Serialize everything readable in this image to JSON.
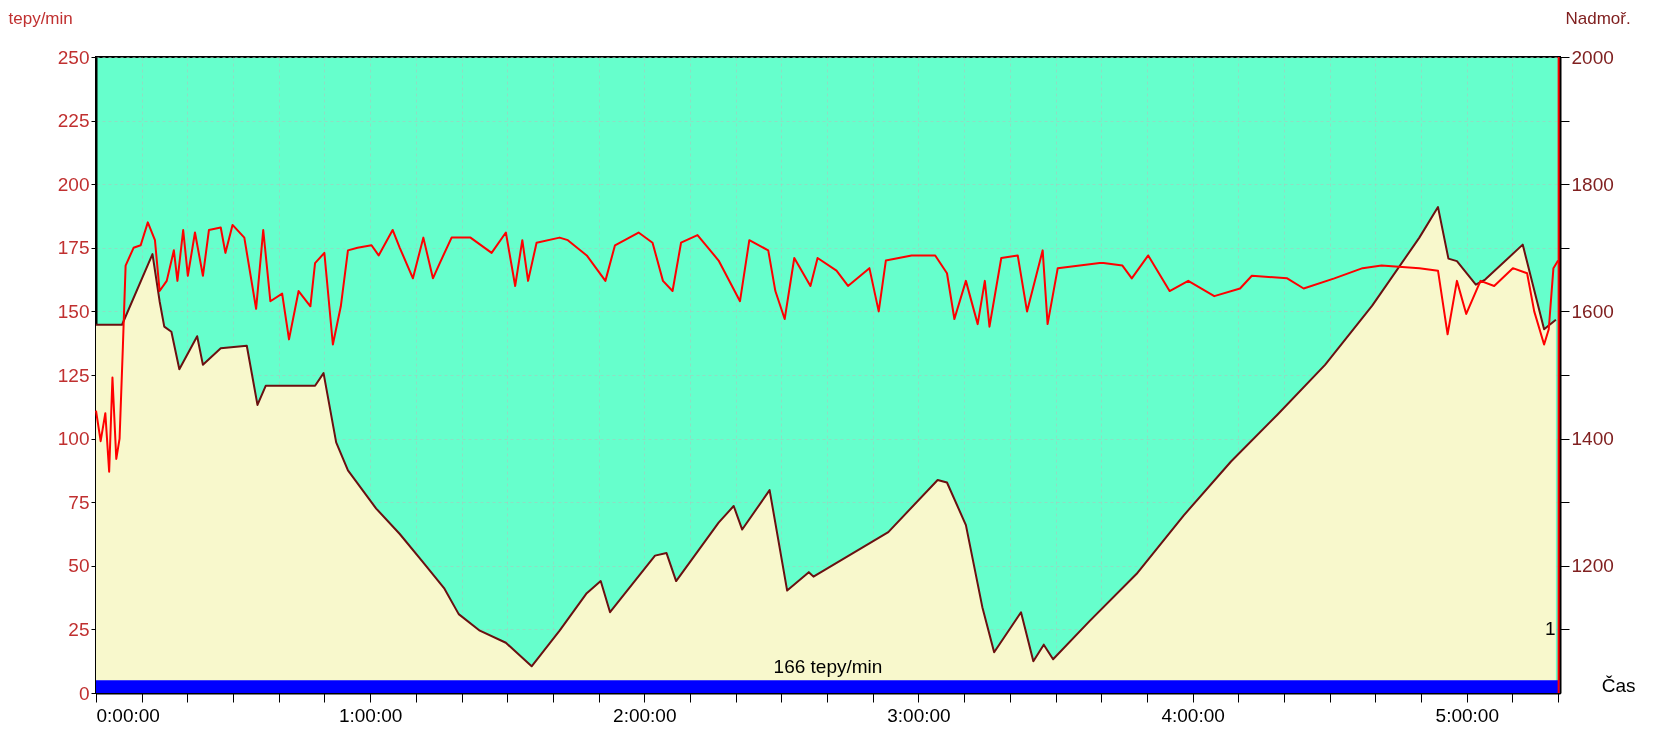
{
  "chart_data": {
    "type": "line",
    "xlabel": "Čas",
    "ylabel": "tepy/min",
    "y2label": "Nadmoř.",
    "xlim": [
      0,
      5.34
    ],
    "xticks": [
      {
        "value": 0,
        "label": "0:00:00"
      },
      {
        "value": 0.1667,
        "label": null
      },
      {
        "value": 0.3333,
        "label": null
      },
      {
        "value": 0.5,
        "label": null
      },
      {
        "value": 0.6667,
        "label": null
      },
      {
        "value": 0.8333,
        "label": null
      },
      {
        "value": 1,
        "label": "1:00:00"
      },
      {
        "value": 1.1667,
        "label": null
      },
      {
        "value": 1.3333,
        "label": null
      },
      {
        "value": 1.5,
        "label": null
      },
      {
        "value": 1.6667,
        "label": null
      },
      {
        "value": 1.8333,
        "label": null
      },
      {
        "value": 2,
        "label": "2:00:00"
      },
      {
        "value": 2.1667,
        "label": null
      },
      {
        "value": 2.3333,
        "label": null
      },
      {
        "value": 2.5,
        "label": null
      },
      {
        "value": 2.6667,
        "label": null
      },
      {
        "value": 2.8333,
        "label": null
      },
      {
        "value": 3,
        "label": "3:00:00"
      },
      {
        "value": 3.1667,
        "label": null
      },
      {
        "value": 3.3333,
        "label": null
      },
      {
        "value": 3.5,
        "label": null
      },
      {
        "value": 3.6667,
        "label": null
      },
      {
        "value": 3.8333,
        "label": null
      },
      {
        "value": 4,
        "label": "4:00:00"
      },
      {
        "value": 4.1667,
        "label": null
      },
      {
        "value": 4.3333,
        "label": null
      },
      {
        "value": 4.5,
        "label": null
      },
      {
        "value": 4.6667,
        "label": null
      },
      {
        "value": 4.8333,
        "label": null
      },
      {
        "value": 5,
        "label": "5:00:00"
      },
      {
        "value": 5.1667,
        "label": null
      },
      {
        "value": 5.3333,
        "label": null
      }
    ],
    "ylim": [
      0,
      250
    ],
    "yticks": [
      0,
      25,
      50,
      75,
      100,
      125,
      150,
      175,
      200,
      225,
      250
    ],
    "y2lim": [
      1000,
      2000
    ],
    "y2ticks": [
      {
        "value": 1100,
        "label": null
      },
      1200,
      {
        "value": 1300,
        "label": null
      },
      1400,
      {
        "value": 1500,
        "label": null
      },
      1600,
      {
        "value": 1700,
        "label": null
      },
      1800,
      {
        "value": 1900,
        "label": null
      },
      2000
    ],
    "grid": true,
    "bands": [
      {
        "axis": "y",
        "from": 0,
        "to": 5,
        "label": "166 tepy/min",
        "color": "#0000ff"
      }
    ],
    "ref_lines": [
      {
        "axis": "x",
        "value": 5.335,
        "color": "#ff0000"
      }
    ],
    "annotations": [
      {
        "text": "1",
        "x": 5.335,
        "y": 25
      }
    ],
    "series": [
      {
        "type": "area",
        "axis": "y2",
        "color": "#f8f8cc",
        "x": [
          0,
          0.095,
          0.206,
          0.232,
          0.249,
          0.275,
          0.304,
          0.369,
          0.39,
          0.455,
          0.55,
          0.589,
          0.619,
          0.799,
          0.83,
          0.876,
          0.919,
          1.022,
          1.108,
          1.194,
          1.271,
          1.323,
          1.4,
          1.495,
          1.589,
          1.691,
          1.79,
          1.841,
          1.875,
          2.039,
          2.081,
          2.116,
          2.271,
          2.326,
          2.357,
          2.457,
          2.521,
          2.6,
          2.617,
          2.89,
          3.07,
          3.104,
          3.173,
          3.233,
          3.276,
          3.374,
          3.419,
          3.457,
          3.491,
          3.624,
          3.795,
          3.967,
          4.14,
          4.31,
          4.483,
          4.655,
          4.827,
          4.895,
          4.933,
          4.964,
          5.033,
          5.067,
          5.204,
          5.282,
          5.325
        ],
        "values": [
          1579,
          1579,
          1690,
          1616,
          1576,
          1568,
          1509,
          1561,
          1516,
          1542,
          1546,
          1453,
          1483,
          1483,
          1503,
          1394,
          1350,
          1290,
          1250,
          1205,
          1164,
          1124,
          1098,
          1079,
          1042,
          1098,
          1157,
          1176,
          1127,
          1216,
          1220,
          1176,
          1268,
          1294,
          1257,
          1319,
          1161,
          1190,
          1183,
          1253,
          1335,
          1331,
          1264,
          1135,
          1064,
          1127,
          1050,
          1076,
          1053,
          1113,
          1187,
          1279,
          1364,
          1438,
          1516,
          1609,
          1716,
          1764,
          1683,
          1679,
          1642,
          1650,
          1705,
          1572,
          1587
        ]
      },
      {
        "axis": "y",
        "color": "#ff0000",
        "x": [
          0,
          0.017,
          0.034,
          0.048,
          0.06,
          0.074,
          0.086,
          0.098,
          0.108,
          0.137,
          0.163,
          0.189,
          0.215,
          0.232,
          0.258,
          0.284,
          0.297,
          0.318,
          0.335,
          0.361,
          0.39,
          0.412,
          0.455,
          0.472,
          0.498,
          0.541,
          0.584,
          0.61,
          0.636,
          0.679,
          0.704,
          0.739,
          0.782,
          0.799,
          0.833,
          0.864,
          0.893,
          0.919,
          0.954,
          1.005,
          1.031,
          1.082,
          1.108,
          1.156,
          1.194,
          1.229,
          1.254,
          1.297,
          1.366,
          1.443,
          1.495,
          1.529,
          1.555,
          1.576,
          1.607,
          1.691,
          1.721,
          1.79,
          1.858,
          1.893,
          1.979,
          2.03,
          2.068,
          2.103,
          2.134,
          2.194,
          2.271,
          2.349,
          2.383,
          2.452,
          2.478,
          2.512,
          2.547,
          2.606,
          2.632,
          2.701,
          2.743,
          2.821,
          2.855,
          2.881,
          2.975,
          3.061,
          3.104,
          3.131,
          3.173,
          3.216,
          3.242,
          3.259,
          3.302,
          3.362,
          3.396,
          3.453,
          3.471,
          3.508,
          3.661,
          3.675,
          3.744,
          3.778,
          3.838,
          3.916,
          3.984,
          4.079,
          4.173,
          4.216,
          4.345,
          4.405,
          4.517,
          4.62,
          4.689,
          4.827,
          4.895,
          4.93,
          4.964,
          4.998,
          5.05,
          5.1,
          5.168,
          5.22,
          5.246,
          5.282,
          5.299,
          5.316,
          5.333
        ],
        "values": [
          111,
          99,
          110,
          87,
          124,
          92,
          100,
          136,
          168,
          175,
          176,
          185,
          178,
          158,
          162,
          174,
          162,
          182,
          164,
          181,
          164,
          182,
          183,
          173,
          184,
          179,
          151,
          182,
          154,
          157,
          139,
          158,
          152,
          169,
          173,
          137,
          152,
          174,
          175,
          176,
          172,
          182,
          175,
          163,
          179,
          163,
          169,
          179,
          179,
          173,
          181,
          160,
          178,
          162,
          177,
          179,
          178,
          172,
          162,
          176,
          181,
          177,
          162,
          158,
          177,
          180,
          170,
          154,
          178,
          174,
          158,
          147,
          171,
          160,
          171,
          166,
          160,
          167,
          150,
          170,
          172,
          172,
          165,
          147,
          162,
          145,
          162,
          144,
          171,
          172,
          150,
          174,
          145,
          167,
          169,
          169,
          168,
          163,
          172,
          158,
          162,
          156,
          159,
          164,
          163,
          159,
          163,
          167,
          168,
          167,
          166,
          141,
          162,
          149,
          162,
          160,
          167,
          165,
          150,
          137,
          143,
          167,
          170
        ]
      }
    ]
  }
}
